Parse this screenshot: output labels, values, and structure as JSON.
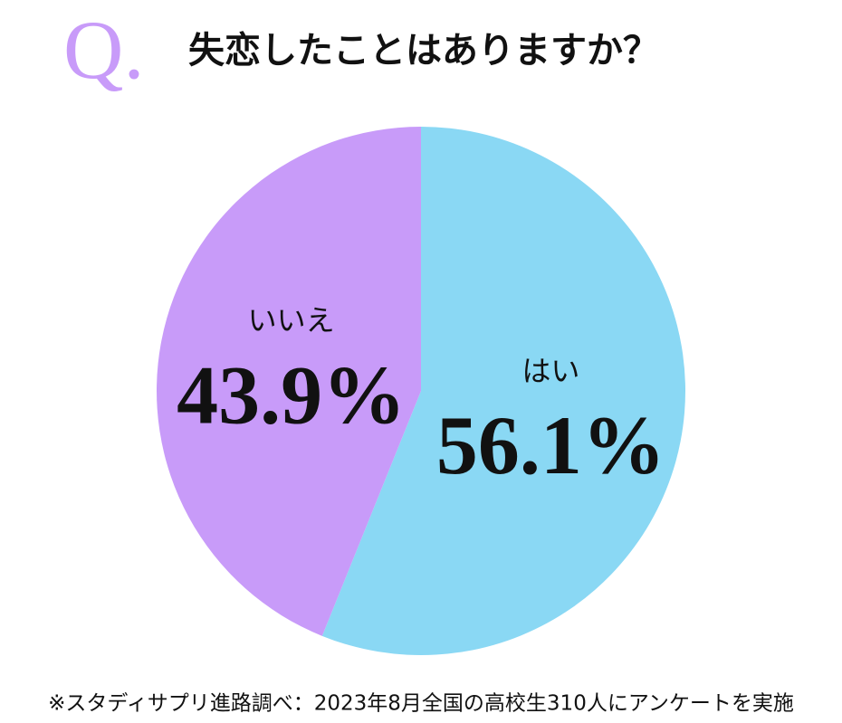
{
  "chart_data": {
    "type": "pie",
    "title_prefix": "Q.",
    "title": "失恋したことはありますか？",
    "categories": [
      "はい",
      "いいえ"
    ],
    "values": [
      56.1,
      43.9
    ],
    "value_labels": [
      "56.1%",
      "43.9%"
    ],
    "colors": [
      "#8ad8f4",
      "#c89bf9"
    ],
    "source": "※スタディサプリ進路調べ：2023年8月全国の高校生310人にアンケートを実施"
  }
}
